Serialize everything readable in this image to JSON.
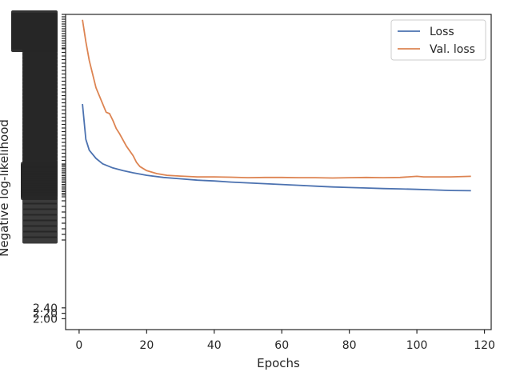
{
  "chart_data": {
    "type": "line",
    "title": "",
    "xlabel": "Epochs",
    "ylabel": "Negative log-likelihood",
    "xlim": [
      -4,
      122
    ],
    "ylim": [
      1.6,
      13.2
    ],
    "xticks": [
      0,
      20,
      40,
      60,
      80,
      100,
      120
    ],
    "yticks": [
      2.0,
      2.2,
      2.4
    ],
    "ytick_labels": [
      "2.00",
      "2.20",
      "2.40"
    ],
    "ytick_overlap_note_hidden": true,
    "grid": false,
    "legend": "top-right",
    "series": [
      {
        "name": "Loss",
        "color": "#4c72b0",
        "x": [
          1,
          2,
          3,
          5,
          7,
          10,
          13,
          16,
          20,
          25,
          30,
          35,
          40,
          45,
          50,
          55,
          60,
          65,
          70,
          75,
          80,
          85,
          90,
          95,
          100,
          105,
          110,
          116
        ],
        "y": [
          9.9,
          8.6,
          8.2,
          7.9,
          7.7,
          7.55,
          7.45,
          7.37,
          7.28,
          7.2,
          7.15,
          7.1,
          7.07,
          7.03,
          7.0,
          6.97,
          6.94,
          6.91,
          6.88,
          6.85,
          6.83,
          6.81,
          6.79,
          6.78,
          6.76,
          6.74,
          6.72,
          6.71
        ]
      },
      {
        "name": "Val. loss",
        "color": "#dd8452",
        "x": [
          1,
          2,
          3,
          5,
          8,
          9,
          10,
          11,
          12,
          14,
          16,
          17,
          18,
          20,
          23,
          26,
          30,
          35,
          40,
          45,
          50,
          55,
          60,
          65,
          70,
          75,
          80,
          85,
          90,
          95,
          100,
          102,
          105,
          110,
          116
        ],
        "y": [
          13.0,
          12.2,
          11.5,
          10.5,
          9.6,
          9.55,
          9.3,
          9.0,
          8.8,
          8.35,
          8.0,
          7.75,
          7.6,
          7.45,
          7.34,
          7.28,
          7.25,
          7.22,
          7.22,
          7.21,
          7.19,
          7.2,
          7.2,
          7.19,
          7.19,
          7.18,
          7.19,
          7.2,
          7.19,
          7.2,
          7.24,
          7.22,
          7.22,
          7.22,
          7.24
        ]
      }
    ]
  }
}
